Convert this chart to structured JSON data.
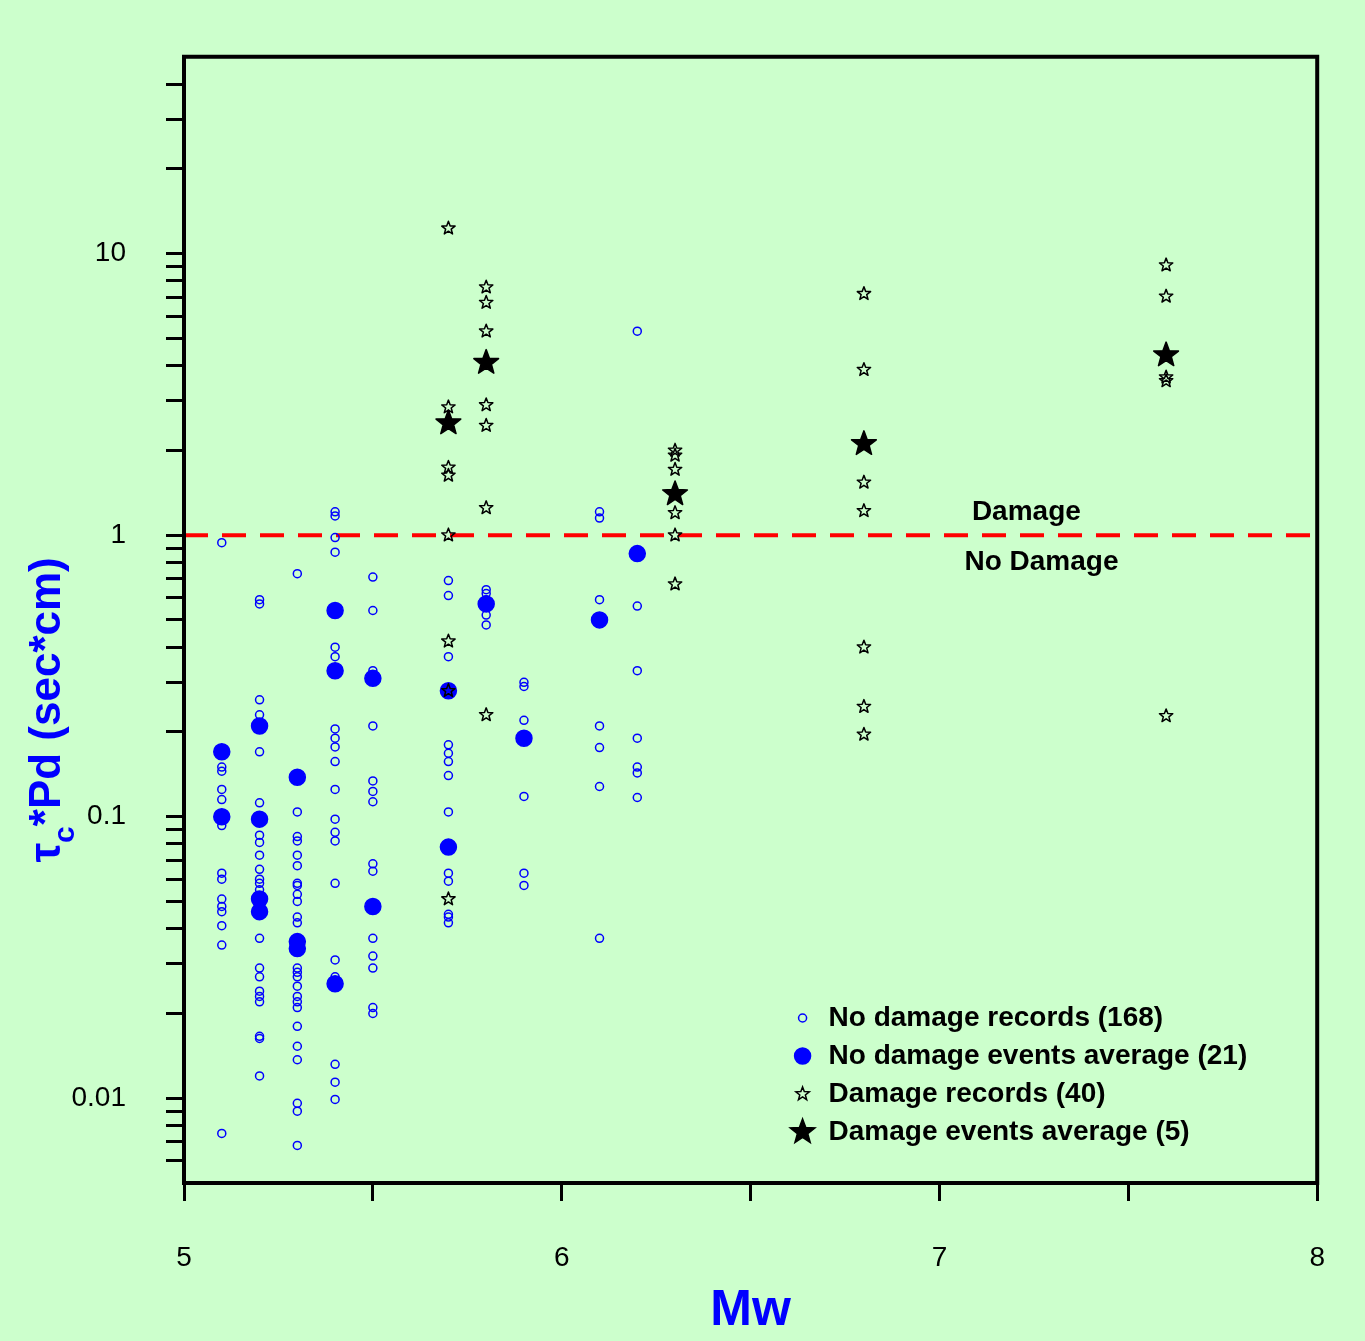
{
  "chart_data": {
    "type": "scatter",
    "xlabel": "Mw",
    "ylabel": "τ$_{c}$*Pd (sec*cm)",
    "log": "y",
    "grid": false,
    "legend": "bottom right",
    "xlim": [
      5,
      8
    ],
    "xticks": [
      5,
      {
        "value": 5.5,
        "label": null
      },
      6,
      {
        "value": 6.5,
        "label": null
      },
      7,
      {
        "value": 7.5,
        "label": null
      },
      8
    ],
    "ylim": [
      0.005,
      50
    ],
    "yticks": [
      {
        "value": 0.006,
        "label": null
      },
      {
        "value": 0.007,
        "label": null
      },
      {
        "value": 0.008,
        "label": null
      },
      {
        "value": 0.009,
        "label": null
      },
      0.01,
      {
        "value": 0.02,
        "label": null
      },
      {
        "value": 0.03,
        "label": null
      },
      {
        "value": 0.04,
        "label": null
      },
      {
        "value": 0.05,
        "label": null
      },
      {
        "value": 0.06,
        "label": null
      },
      {
        "value": 0.07,
        "label": null
      },
      {
        "value": 0.08,
        "label": null
      },
      {
        "value": 0.09,
        "label": null
      },
      0.1,
      {
        "value": 0.2,
        "label": null
      },
      {
        "value": 0.3,
        "label": null
      },
      {
        "value": 0.4,
        "label": null
      },
      {
        "value": 0.5,
        "label": null
      },
      {
        "value": 0.6,
        "label": null
      },
      {
        "value": 0.7,
        "label": null
      },
      {
        "value": 0.8,
        "label": null
      },
      {
        "value": 0.9,
        "label": null
      },
      1,
      {
        "value": 2,
        "label": null
      },
      {
        "value": 3,
        "label": null
      },
      {
        "value": 4,
        "label": null
      },
      {
        "value": 5,
        "label": null
      },
      {
        "value": 6,
        "label": null
      },
      {
        "value": 7,
        "label": null
      },
      {
        "value": 8,
        "label": null
      },
      {
        "value": 9,
        "label": null
      },
      10,
      {
        "value": 20,
        "label": null
      },
      {
        "value": 30,
        "label": null
      },
      {
        "value": 40,
        "label": null
      }
    ],
    "ref_lines": [
      {
        "axis": "y",
        "value": 1,
        "color": "#ff0000",
        "line_style": "dashed"
      }
    ],
    "annotations": [
      {
        "text": "Damage",
        "x": 7.23,
        "y": 1
      },
      {
        "text": "No Damage",
        "x": 7.27,
        "y": 1
      }
    ],
    "series": [
      {
        "name": "No damage records (168)",
        "color": "#0000ff",
        "marker": "circle",
        "x": [
          5.1,
          5.1,
          5.1,
          5.1,
          5.1,
          5.1,
          5.1,
          5.1,
          5.1,
          5.1,
          5.1,
          5.1,
          5.1,
          5.1,
          5.2,
          5.2,
          5.2,
          5.2,
          5.2,
          5.2,
          5.2,
          5.2,
          5.2,
          5.2,
          5.2,
          5.2,
          5.2,
          5.2,
          5.2,
          5.2,
          5.2,
          5.2,
          5.2,
          5.2,
          5.2,
          5.2,
          5.3,
          5.3,
          5.3,
          5.3,
          5.3,
          5.3,
          5.3,
          5.3,
          5.3,
          5.3,
          5.3,
          5.3,
          5.3,
          5.3,
          5.3,
          5.3,
          5.3,
          5.3,
          5.3,
          5.3,
          5.3,
          5.3,
          5.3,
          5.3,
          5.3,
          5.4,
          5.4,
          5.4,
          5.4,
          5.4,
          5.4,
          5.4,
          5.4,
          5.4,
          5.4,
          5.4,
          5.4,
          5.4,
          5.4,
          5.4,
          5.4,
          5.4,
          5.4,
          5.4,
          5.4,
          5.5,
          5.5,
          5.5,
          5.5,
          5.5,
          5.5,
          5.5,
          5.5,
          5.5,
          5.5,
          5.5,
          5.5,
          5.5,
          5.5,
          5.7,
          5.7,
          5.7,
          5.7,
          5.7,
          5.7,
          5.7,
          5.7,
          5.7,
          5.7,
          5.7,
          5.7,
          5.7,
          5.8,
          5.8,
          5.8,
          5.8,
          5.8,
          5.9,
          5.9,
          5.9,
          5.9,
          5.9,
          5.9,
          6.1,
          6.1,
          6.1,
          6.1,
          6.1,
          6.1,
          6.1,
          6.2,
          6.2,
          6.2,
          6.2,
          6.2,
          6.2,
          6.2
        ],
        "values": [
          0.94,
          0.15,
          0.145,
          0.125,
          0.115,
          0.093,
          0.063,
          0.06,
          0.051,
          0.048,
          0.046,
          0.041,
          0.035,
          0.0075,
          0.59,
          0.57,
          0.26,
          0.23,
          0.17,
          0.112,
          0.086,
          0.081,
          0.073,
          0.065,
          0.06,
          0.058,
          0.055,
          0.037,
          0.029,
          0.027,
          0.024,
          0.023,
          0.022,
          0.0166,
          0.0163,
          0.012,
          0.73,
          0.104,
          0.085,
          0.082,
          0.073,
          0.067,
          0.058,
          0.057,
          0.053,
          0.05,
          0.044,
          0.042,
          0.029,
          0.028,
          0.027,
          0.025,
          0.023,
          0.022,
          0.021,
          0.018,
          0.0153,
          0.0137,
          0.0096,
          0.009,
          0.0068,
          1.21,
          1.17,
          0.98,
          0.87,
          0.4,
          0.37,
          0.205,
          0.19,
          0.177,
          0.157,
          0.125,
          0.098,
          0.088,
          0.082,
          0.058,
          0.031,
          0.027,
          0.0132,
          0.0114,
          0.0099,
          0.71,
          0.54,
          0.33,
          0.21,
          0.134,
          0.123,
          0.113,
          0.068,
          0.064,
          0.037,
          0.032,
          0.029,
          0.021,
          0.02,
          0.69,
          0.61,
          0.37,
          0.18,
          0.168,
          0.157,
          0.14,
          0.104,
          0.063,
          0.059,
          0.045,
          0.044,
          0.042,
          0.64,
          0.62,
          0.59,
          0.52,
          0.48,
          0.3,
          0.29,
          0.22,
          0.118,
          0.063,
          0.057,
          1.21,
          1.15,
          0.59,
          0.21,
          0.176,
          0.128,
          0.037,
          5.3,
          0.56,
          0.33,
          0.19,
          0.15,
          0.143,
          0.117
        ]
      },
      {
        "name": "No damage events average (21)",
        "color": "#0000ff",
        "marker": "circle",
        "x": [
          5.1,
          5.1,
          5.2,
          5.2,
          5.2,
          5.2,
          5.3,
          5.3,
          5.3,
          5.4,
          5.4,
          5.4,
          5.5,
          5.5,
          5.7,
          5.7,
          5.8,
          5.9,
          6.1,
          6.2
        ],
        "values": [
          0.17,
          0.1,
          0.21,
          0.098,
          0.051,
          0.046,
          0.138,
          0.036,
          0.034,
          0.54,
          0.33,
          0.0255,
          0.31,
          0.048,
          0.28,
          0.078,
          0.57,
          0.19,
          0.5,
          0.86
        ]
      },
      {
        "name": "Damage records (40)",
        "color": "#000000",
        "marker": "star",
        "x": [
          5.7,
          5.7,
          5.7,
          5.7,
          5.7,
          5.7,
          5.7,
          5.7,
          5.8,
          5.8,
          5.8,
          5.8,
          5.8,
          5.8,
          5.8,
          6.3,
          6.3,
          6.3,
          6.3,
          6.3,
          6.3,
          6.8,
          6.8,
          6.8,
          6.8,
          6.8,
          6.8,
          6.8,
          7.6,
          7.6,
          7.6,
          7.6,
          7.6
        ],
        "values": [
          12.3,
          2.85,
          1.74,
          1.63,
          1.0,
          0.42,
          0.28,
          0.051,
          7.6,
          6.7,
          5.3,
          2.9,
          2.45,
          1.25,
          0.23,
          2.0,
          1.92,
          1.71,
          1.2,
          1.0,
          0.67,
          7.2,
          3.87,
          1.54,
          1.22,
          0.4,
          0.246,
          0.196,
          9.1,
          7.05,
          3.64,
          3.53,
          0.228
        ]
      },
      {
        "name": "Damage events average (5)",
        "color": "#000000",
        "marker": "star",
        "x": [
          5.7,
          5.8,
          6.3,
          6.8,
          7.6
        ],
        "values": [
          2.5,
          4.1,
          1.4,
          2.11,
          4.36
        ]
      }
    ]
  }
}
